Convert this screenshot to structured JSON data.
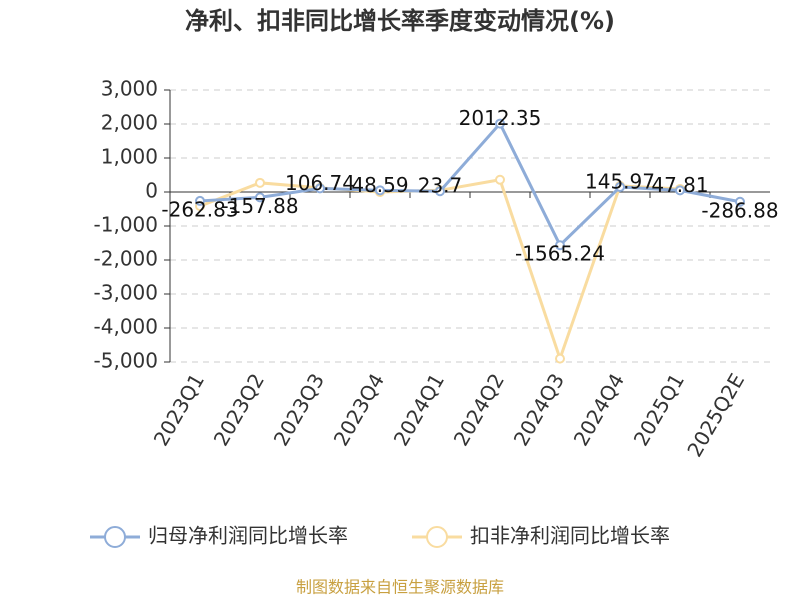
{
  "chart_data": {
    "type": "line",
    "title": "净利、扣非同比增长率季度变动情况(%)",
    "categories": [
      "2023Q1",
      "2023Q2",
      "2023Q3",
      "2023Q4",
      "2024Q1",
      "2024Q2",
      "2024Q3",
      "2024Q4",
      "2025Q1",
      "2025Q2E"
    ],
    "series": [
      {
        "name": "归母净利润同比增长率",
        "color": "#8eacd8",
        "values": [
          -262.83,
          -157.88,
          106.74,
          48.59,
          23.7,
          2012.35,
          -1565.24,
          145.97,
          47.81,
          -286.88
        ],
        "show_labels": true
      },
      {
        "name": "扣非净利润同比增长率",
        "color": "#f9dca0",
        "values": [
          -415,
          270,
          120,
          0,
          50,
          360,
          -4900,
          180,
          90,
          null
        ],
        "show_labels": false
      }
    ],
    "ylim": [
      -5000,
      3000
    ],
    "yticks": [
      {
        "value": -5000,
        "label": "-5,000"
      },
      {
        "value": -4000,
        "label": "-4,000"
      },
      {
        "value": -3000,
        "label": "-3,000"
      },
      {
        "value": -2000,
        "label": "-2,000"
      },
      {
        "value": -1000,
        "label": "-1,000"
      },
      0,
      {
        "value": 1000,
        "label": "1,000"
      },
      {
        "value": 2000,
        "label": "2,000"
      },
      {
        "value": 3000,
        "label": "3,000"
      }
    ],
    "grid": true,
    "source": "制图数据来自恒生聚源数据库"
  }
}
